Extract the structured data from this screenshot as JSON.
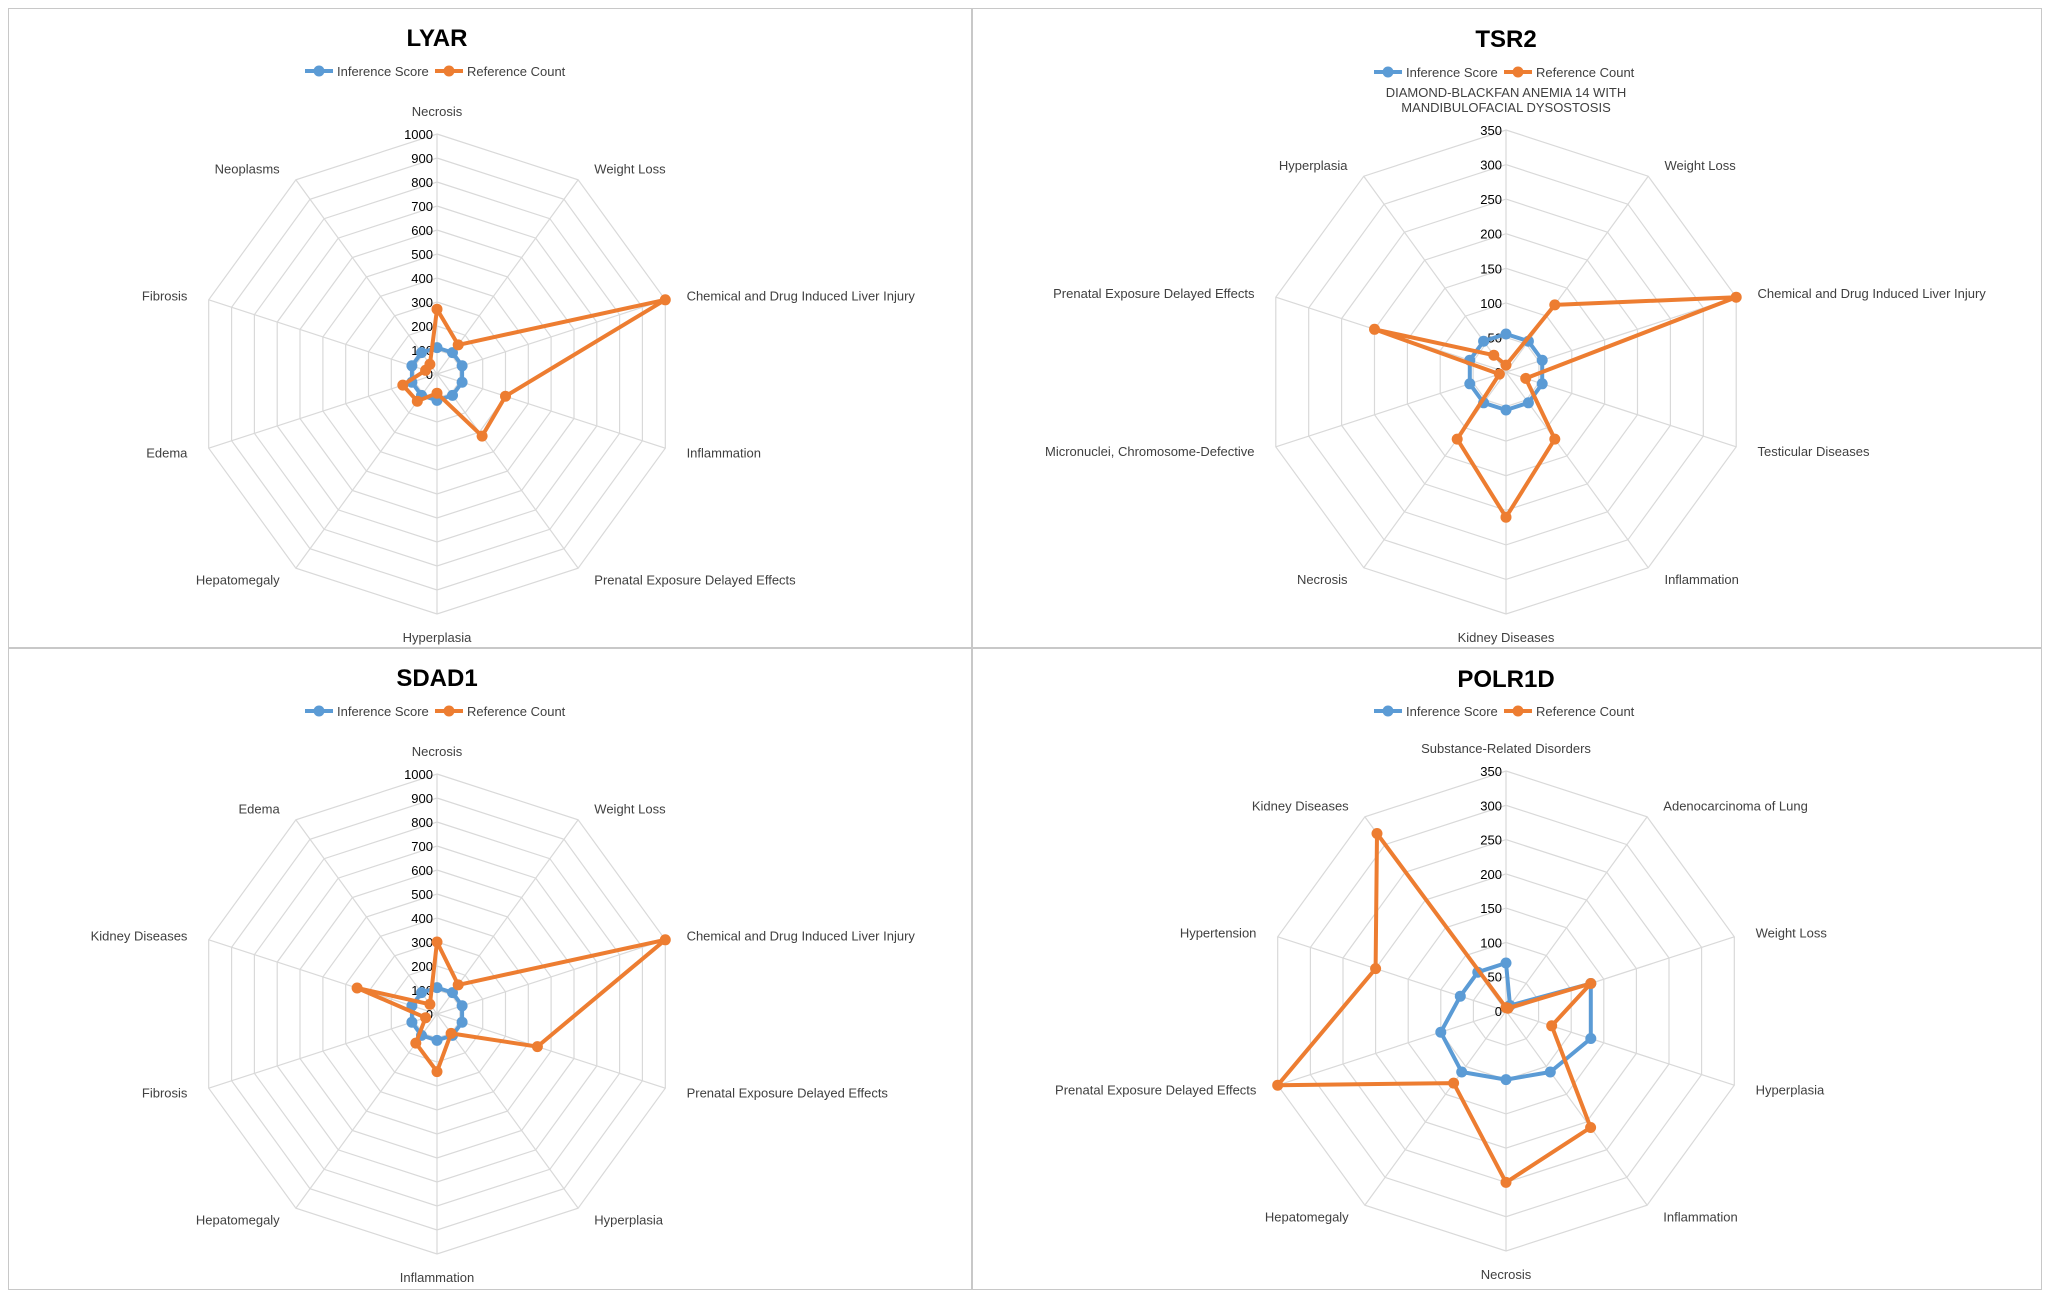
{
  "legend_colors": {
    "Inference Score": "#5b9bd5",
    "Reference Count": "#ed7d31"
  },
  "chart_data": [
    {
      "type": "radar",
      "title": "LYAR",
      "rlim": [
        0,
        1000
      ],
      "rticks": [
        0,
        100,
        200,
        300,
        400,
        500,
        600,
        700,
        800,
        900,
        1000
      ],
      "legend": [
        "Inference Score",
        "Reference Count"
      ],
      "categories": [
        "Necrosis",
        "Weight Loss",
        "Chemical and Drug Induced Liver Injury",
        "Inflammation",
        "Prenatal Exposure Delayed Effects",
        "Hyperplasia",
        "Hepatomegaly",
        "Edema",
        "Fibrosis",
        "Neoplasms"
      ],
      "series": [
        {
          "name": "Inference Score",
          "values": [
            110,
            110,
            110,
            110,
            110,
            110,
            110,
            110,
            110,
            110
          ]
        },
        {
          "name": "Reference Count",
          "values": [
            270,
            150,
            1000,
            300,
            320,
            80,
            140,
            150,
            50,
            50
          ]
        }
      ]
    },
    {
      "type": "radar",
      "title": "TSR2",
      "rlim": [
        0,
        350
      ],
      "rticks": [
        0,
        50,
        100,
        150,
        200,
        250,
        300,
        350
      ],
      "legend": [
        "Inference Score",
        "Reference Count"
      ],
      "categories": [
        "DIAMOND-BLACKFAN ANEMIA 14 WITH MANDIBULOFACIAL DYSOSTOSIS",
        "Weight Loss",
        "Chemical and Drug Induced Liver Injury",
        "Testicular Diseases",
        "Inflammation",
        "Kidney Diseases",
        "Necrosis",
        "Micronuclei, Chromosome-Defective",
        "Prenatal Exposure Delayed Effects",
        "Hyperplasia"
      ],
      "series": [
        {
          "name": "Inference Score",
          "values": [
            55,
            55,
            55,
            55,
            55,
            55,
            55,
            55,
            55,
            55
          ]
        },
        {
          "name": "Reference Count",
          "values": [
            10,
            120,
            350,
            30,
            120,
            210,
            120,
            10,
            200,
            30
          ]
        }
      ]
    },
    {
      "type": "radar",
      "title": "SDAD1",
      "rlim": [
        0,
        1000
      ],
      "rticks": [
        0,
        100,
        200,
        300,
        400,
        500,
        600,
        700,
        800,
        900,
        1000
      ],
      "legend": [
        "Inference Score",
        "Reference Count"
      ],
      "categories": [
        "Necrosis",
        "Weight Loss",
        "Chemical and Drug Induced Liver Injury",
        "Prenatal Exposure Delayed Effects",
        "Hyperplasia",
        "Inflammation",
        "Hepatomegaly",
        "Fibrosis",
        "Kidney Diseases",
        "Edema"
      ],
      "series": [
        {
          "name": "Inference Score",
          "values": [
            110,
            110,
            110,
            110,
            110,
            110,
            110,
            110,
            110,
            110
          ]
        },
        {
          "name": "Reference Count",
          "values": [
            300,
            150,
            1000,
            440,
            100,
            240,
            150,
            50,
            350,
            50
          ]
        }
      ]
    },
    {
      "type": "radar",
      "title": "POLR1D",
      "rlim": [
        0,
        350
      ],
      "rticks": [
        0,
        50,
        100,
        150,
        200,
        250,
        300,
        350
      ],
      "legend": [
        "Inference Score",
        "Reference Count"
      ],
      "categories": [
        "Substance-Related Disorders",
        "Adenocarcinoma of Lung",
        "Weight Loss",
        "Hyperplasia",
        "Inflammation",
        "Necrosis",
        "Hepatomegaly",
        "Prenatal Exposure Delayed Effects",
        "Hypertension",
        "Kidney Diseases"
      ],
      "series": [
        {
          "name": "Inference Score",
          "values": [
            70,
            10,
            130,
            130,
            110,
            100,
            110,
            100,
            70,
            70
          ]
        },
        {
          "name": "Reference Count",
          "values": [
            5,
            5,
            130,
            70,
            210,
            250,
            130,
            350,
            200,
            320
          ]
        }
      ]
    }
  ]
}
